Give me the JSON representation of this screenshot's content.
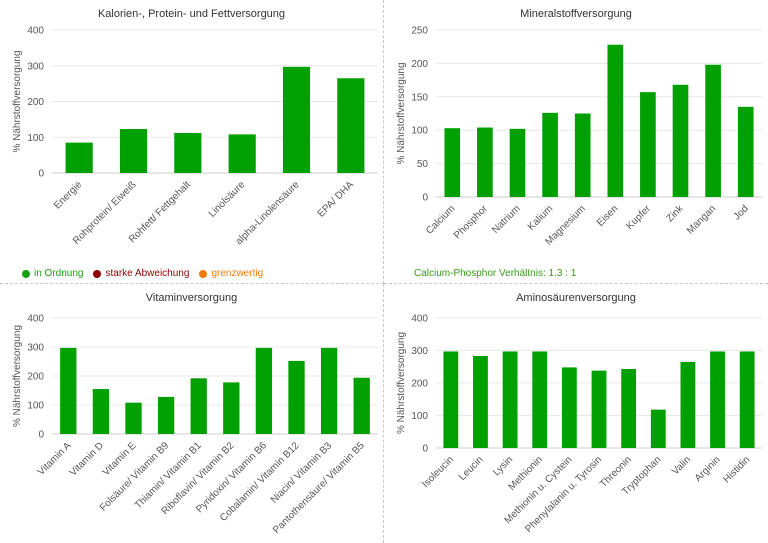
{
  "colors": {
    "bar": "#00a000",
    "grid": "#e8e8e8",
    "axis": "#cccccc"
  },
  "legend": [
    {
      "label": "in Ordnung",
      "color": "#13a10e"
    },
    {
      "label": "starke Abweichung",
      "color": "#8b0000"
    },
    {
      "label": "grenzwertig",
      "color": "#f07b0a"
    }
  ],
  "ratio_text": "Calcium-Phosphor Verhältnis: 1.3 : 1",
  "chart_data": [
    {
      "type": "bar",
      "title": "Kalorien-, Protein- und Fettversorgung",
      "ylabel": "% Nährstoffversorgung",
      "ylim": [
        0,
        400
      ],
      "yticks": [
        0,
        100,
        200,
        300,
        400
      ],
      "grid": true,
      "categories": [
        "Energie",
        "Rohprotein/ Eiweiß",
        "Rohfett/ Fettgehalt",
        "Linolsäure",
        "alpha-Linolensäure",
        "EPA/ DHA"
      ],
      "values": [
        85,
        123,
        112,
        108,
        297,
        265
      ]
    },
    {
      "type": "bar",
      "title": "Mineralstoffversorgung",
      "ylabel": "% Nährstoffversorgung",
      "ylim": [
        0,
        250
      ],
      "yticks": [
        0,
        50,
        100,
        150,
        200,
        250
      ],
      "grid": true,
      "categories": [
        "Calcium",
        "Phosphor",
        "Natrium",
        "Kalium",
        "Magnesium",
        "Eisen",
        "Kupfer",
        "Zink",
        "Mangan",
        "Jod"
      ],
      "values": [
        103,
        104,
        102,
        126,
        125,
        228,
        157,
        168,
        198,
        135
      ]
    },
    {
      "type": "bar",
      "title": "Vitaminversorgung",
      "ylabel": "% Nährstoffversorgung",
      "ylim": [
        0,
        400
      ],
      "yticks": [
        0,
        100,
        200,
        300,
        400
      ],
      "grid": true,
      "categories": [
        "Vitamin A",
        "Vitamin D",
        "Vitamin E",
        "Folsäure/ Vitamin B9",
        "Thiamin/ Vitamin B1",
        "Riboflavin/ Vitamin B2",
        "Pyridoxin/ Vitamin B6",
        "Cobalamin/ Vitamin B12",
        "Niacin/ Vitamin B3",
        "Pantothensäure/ Vitamin B5"
      ],
      "values": [
        297,
        155,
        108,
        128,
        192,
        178,
        297,
        252,
        297,
        194
      ]
    },
    {
      "type": "bar",
      "title": "Aminosäurenversorgung",
      "ylabel": "% Nährstoffversorgung",
      "ylim": [
        0,
        400
      ],
      "yticks": [
        0,
        100,
        200,
        300,
        400
      ],
      "grid": true,
      "categories": [
        "Isoleucin",
        "Leucin",
        "Lysin",
        "Methionin",
        "Methionin u. Cystein",
        "Phenylalanin u. Tyrosin",
        "Threonin",
        "Tryptophan",
        "Valin",
        "Arginin",
        "Histidin"
      ],
      "values": [
        297,
        283,
        297,
        297,
        248,
        238,
        243,
        118,
        265,
        297,
        297
      ]
    }
  ]
}
